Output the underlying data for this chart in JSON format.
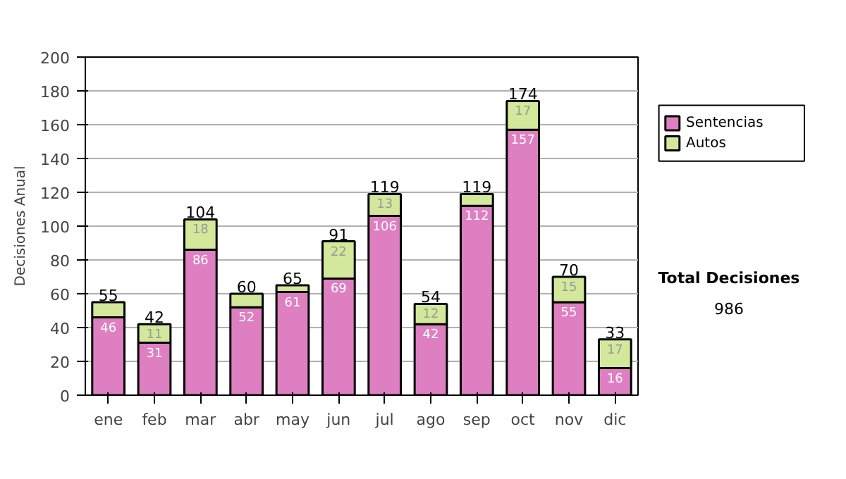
{
  "chart_data": {
    "type": "bar",
    "stacked": true,
    "ylabel": "Decisiones Anual",
    "categories": [
      "ene",
      "feb",
      "mar",
      "abr",
      "may",
      "jun",
      "jul",
      "ago",
      "sep",
      "oct",
      "nov",
      "dic"
    ],
    "series": [
      {
        "name": "Sentencias",
        "color": "#de7fc1",
        "values": [
          46,
          31,
          86,
          52,
          61,
          69,
          106,
          42,
          112,
          157,
          55,
          16
        ],
        "value_labels": [
          "46",
          "31",
          "86",
          "52",
          "61",
          "69",
          "106",
          "42",
          "112",
          "157",
          "55",
          "16"
        ]
      },
      {
        "name": "Autos",
        "color": "#d3e89b",
        "values": [
          9,
          11,
          18,
          8,
          4,
          22,
          13,
          12,
          7,
          17,
          15,
          17
        ],
        "value_labels": [
          null,
          "11",
          "18",
          null,
          null,
          "22",
          "13",
          "12",
          null,
          "17",
          "15",
          "17"
        ]
      }
    ],
    "totals": [
      "55",
      "42",
      "104",
      "60",
      "65",
      "91",
      "119",
      "54",
      "119",
      "174",
      "70",
      "33"
    ],
    "ylim": [
      0,
      200
    ],
    "yticks": [
      0,
      20,
      40,
      60,
      80,
      100,
      120,
      140,
      160,
      180,
      200
    ],
    "grid": "y",
    "legend": "right",
    "annotations": [
      "Total Decisiones",
      "986"
    ]
  }
}
